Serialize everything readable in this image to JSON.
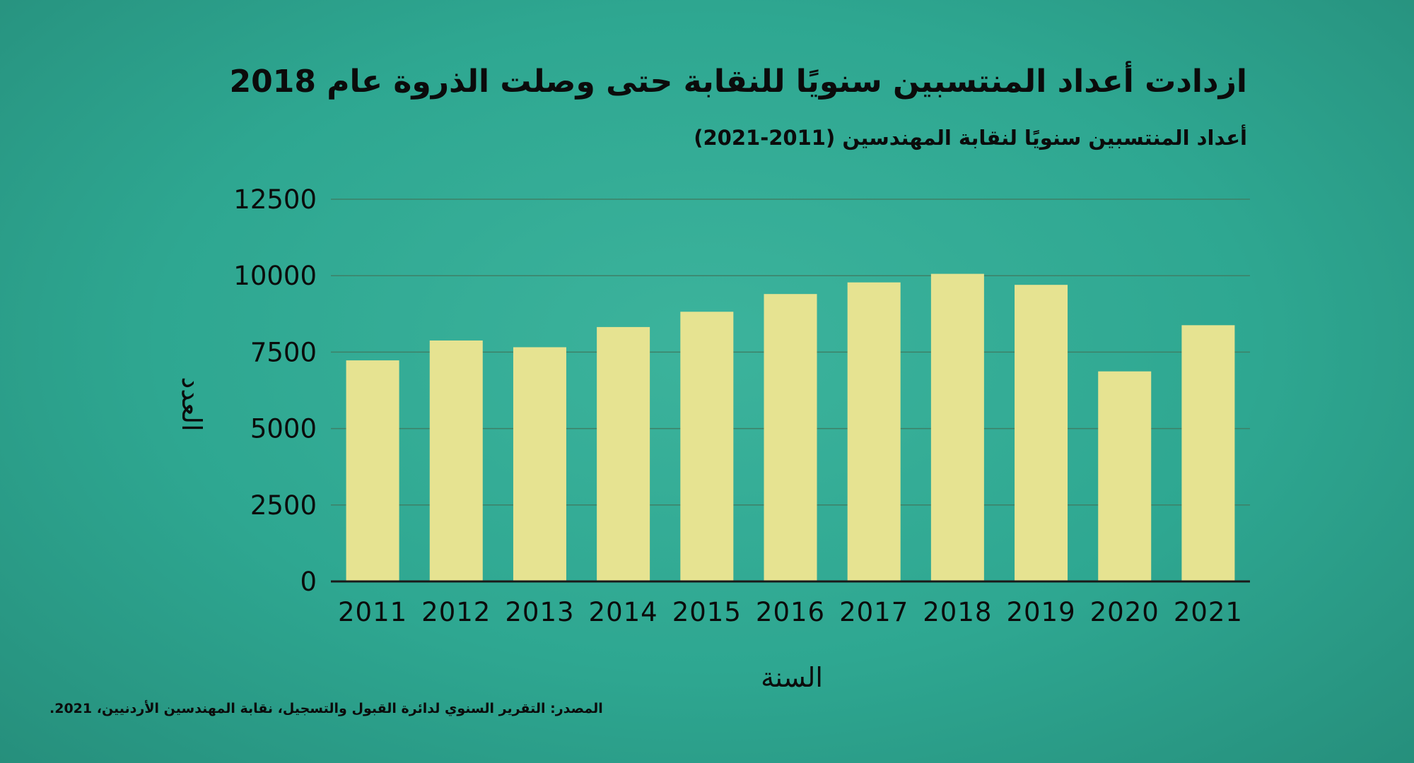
{
  "colors": {
    "background": "#2fa893",
    "bar": "#e6e391",
    "grid": "#3e8067",
    "text": "#0b0b0b",
    "axis": "#1a1a1a"
  },
  "header": {
    "title": "ازدادت أعداد المنتسبين سنويًا للنقابة حتى وصلت الذروة عام 2018",
    "subtitle": "أعداد المنتسبين سنويًا لنقابة المهندسين (2011-2021)"
  },
  "footer": {
    "source": "المصدر: التقرير السنوي لدائرة القبول والتسجيل، نقابة المهندسين الأردنيين، 2021."
  },
  "chart_data": {
    "type": "bar",
    "title": "ازدادت أعداد المنتسبين سنويًا للنقابة حتى وصلت الذروة عام 2018",
    "subtitle": "أعداد المنتسبين سنويًا لنقابة المهندسين (2011-2021)",
    "xlabel": "السنة",
    "ylabel": "العدد",
    "categories": [
      "2011",
      "2012",
      "2013",
      "2014",
      "2015",
      "2016",
      "2017",
      "2018",
      "2019",
      "2020",
      "2021"
    ],
    "values": [
      7230,
      7880,
      7660,
      8320,
      8820,
      9400,
      9780,
      10060,
      9700,
      6870,
      8380
    ],
    "ylim": [
      0,
      12500
    ],
    "yticks": [
      "0",
      "2500",
      "5000",
      "7500",
      "10000",
      "12500"
    ],
    "grid": true,
    "legend": "none"
  }
}
